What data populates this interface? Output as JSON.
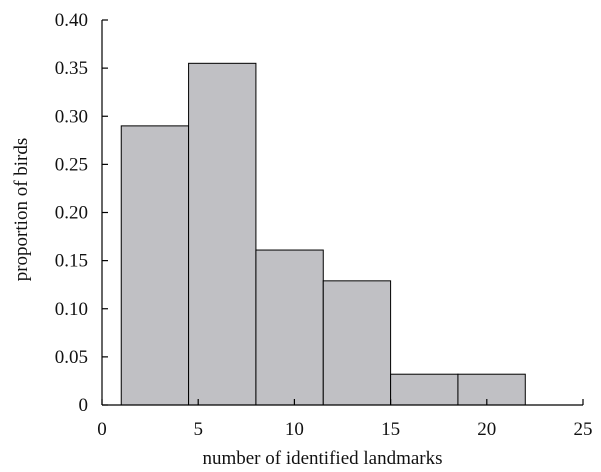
{
  "chart_data": {
    "type": "bar",
    "title": "",
    "xlabel": "number of identified landmarks",
    "ylabel": "proportion of birds",
    "xlim": [
      0,
      25
    ],
    "ylim": [
      0,
      0.4
    ],
    "x_ticks": [
      0,
      5,
      10,
      15,
      20,
      25
    ],
    "x_tick_labels": [
      "0",
      "5",
      "10",
      "15",
      "20",
      "25"
    ],
    "y_ticks": [
      0,
      0.05,
      0.1,
      0.15,
      0.2,
      0.25,
      0.3,
      0.35,
      0.4
    ],
    "y_tick_labels": [
      "0",
      "0.05",
      "0.10",
      "0.15",
      "0.20",
      "0.25",
      "0.30",
      "0.35",
      "0.40"
    ],
    "grid": false,
    "legend": "none",
    "bar_color": "#c0c0c4",
    "bins": [
      {
        "x_start": 1.0,
        "x_end": 4.5,
        "value": 0.29
      },
      {
        "x_start": 4.5,
        "x_end": 8.0,
        "value": 0.355
      },
      {
        "x_start": 8.0,
        "x_end": 11.5,
        "value": 0.161
      },
      {
        "x_start": 11.5,
        "x_end": 15.0,
        "value": 0.129
      },
      {
        "x_start": 15.0,
        "x_end": 18.5,
        "value": 0.032
      },
      {
        "x_start": 18.5,
        "x_end": 22.0,
        "value": 0.032
      }
    ]
  }
}
